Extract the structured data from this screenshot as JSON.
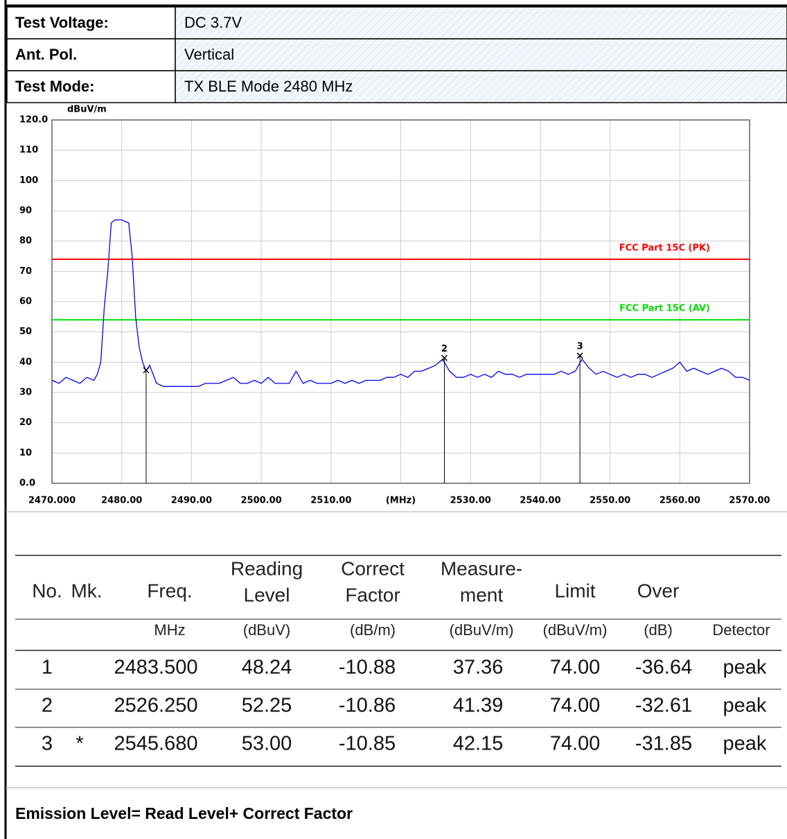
{
  "header": {
    "rows": [
      {
        "label": "Test Voltage:",
        "value": "DC 3.7V"
      },
      {
        "label": "Ant. Pol.",
        "value": "Vertical"
      },
      {
        "label": "Test Mode:",
        "value": "TX BLE Mode 2480 MHz"
      }
    ]
  },
  "chart_data": {
    "type": "line",
    "y_unit": "dBuV/m",
    "xlim": [
      2470,
      2570
    ],
    "ylim": [
      0,
      120
    ],
    "xticks": [
      {
        "value": 2470,
        "label": "2470.000"
      },
      {
        "value": 2480,
        "label": "2480.00"
      },
      {
        "value": 2490,
        "label": "2490.00"
      },
      {
        "value": 2500,
        "label": "2500.00"
      },
      {
        "value": 2510,
        "label": "2510.00"
      },
      {
        "value": 2520,
        "label": "(MHz)"
      },
      {
        "value": 2530,
        "label": "2530.00"
      },
      {
        "value": 2540,
        "label": "2540.00"
      },
      {
        "value": 2550,
        "label": "2550.00"
      },
      {
        "value": 2560,
        "label": "2560.00"
      },
      {
        "value": 2570,
        "label": "2570.00"
      }
    ],
    "yticks": [
      {
        "value": 0,
        "label": "0.0"
      },
      10,
      20,
      30,
      40,
      50,
      60,
      70,
      80,
      90,
      100,
      110,
      {
        "value": 120,
        "label": "120.0"
      }
    ],
    "grid": true,
    "series": [
      {
        "color": "#0000ee",
        "x": [
          2470,
          2471,
          2472,
          2473,
          2474,
          2475,
          2476,
          2476.5,
          2477,
          2477.5,
          2478,
          2478.5,
          2479,
          2480,
          2481,
          2481.5,
          2482,
          2482.5,
          2483,
          2483.5,
          2484,
          2485,
          2486,
          2487,
          2488,
          2489,
          2490,
          2491,
          2492,
          2493,
          2494,
          2495,
          2496,
          2497,
          2498,
          2499,
          2500,
          2501,
          2502,
          2503,
          2504,
          2505,
          2506,
          2507,
          2508,
          2509,
          2510,
          2511,
          2512,
          2513,
          2514,
          2515,
          2516,
          2517,
          2518,
          2519,
          2520,
          2521,
          2522,
          2523,
          2524,
          2525,
          2526,
          2527,
          2528,
          2529,
          2530,
          2531,
          2532,
          2533,
          2534,
          2535,
          2536,
          2537,
          2538,
          2539,
          2540,
          2541,
          2542,
          2543,
          2544,
          2545,
          2546,
          2547,
          2548,
          2549,
          2550,
          2551,
          2552,
          2553,
          2554,
          2555,
          2556,
          2557,
          2558,
          2559,
          2560,
          2561,
          2562,
          2563,
          2564,
          2565,
          2566,
          2567,
          2568,
          2569,
          2570
        ],
        "values": [
          34,
          33,
          35,
          34,
          33,
          35,
          34,
          36,
          40,
          58,
          70,
          86,
          87,
          87,
          86,
          75,
          55,
          45,
          40,
          37,
          39,
          33,
          32,
          32,
          32,
          32,
          32,
          32,
          33,
          33,
          33,
          34,
          35,
          33,
          33,
          34,
          33,
          35,
          33,
          33,
          33,
          37,
          33,
          34,
          33,
          33,
          33,
          34,
          33,
          34,
          33,
          34,
          34,
          34,
          35,
          35,
          36,
          35,
          37,
          37,
          38,
          39,
          41,
          37,
          35,
          35,
          36,
          35,
          36,
          35,
          37,
          36,
          36,
          35,
          36,
          36,
          36,
          36,
          36,
          37,
          36,
          37,
          41,
          38,
          36,
          37,
          36,
          35,
          36,
          35,
          36,
          36,
          35,
          36,
          37,
          38,
          40,
          37,
          38,
          37,
          36,
          37,
          38,
          37,
          35,
          35,
          34
        ]
      }
    ],
    "limit_lines": [
      {
        "name": "FCC Part 15C (PK)",
        "value": 74,
        "color": "#ff0000"
      },
      {
        "name": "FCC Part 15C (AV)",
        "value": 54,
        "color": "#00dd00"
      }
    ],
    "markers": [
      {
        "x": 2483.5,
        "value": 37.36
      },
      {
        "x": 2526.25,
        "value": 41.39,
        "label": "2"
      },
      {
        "x": 2545.68,
        "value": 42.15,
        "label": "3"
      }
    ]
  },
  "table": {
    "columns": [
      {
        "head": [
          "No."
        ]
      },
      {
        "head": [
          "Mk."
        ]
      },
      {
        "head": [
          "Freq."
        ],
        "unit": "MHz"
      },
      {
        "head": [
          "Reading",
          "Level"
        ],
        "unit": "(dBuV)"
      },
      {
        "head": [
          "Correct",
          "Factor"
        ],
        "unit": "(dB/m)"
      },
      {
        "head": [
          "Measure-",
          "ment"
        ],
        "unit": "(dBuV/m)"
      },
      {
        "head": [
          "Limit"
        ],
        "unit": "(dBuV/m)"
      },
      {
        "head": [
          "Over"
        ],
        "unit": "(dB)"
      },
      {
        "unit": "Detector"
      }
    ],
    "rows": [
      {
        "no": "1",
        "freq": "2483.500",
        "reading": "48.24",
        "factor": "-10.88",
        "measurement": "37.36",
        "limit": "74.00",
        "over": "-36.64",
        "detector": "peak"
      },
      {
        "no": "2",
        "freq": "2526.250",
        "reading": "52.25",
        "factor": "-10.86",
        "measurement": "41.39",
        "limit": "74.00",
        "over": "-32.61",
        "detector": "peak"
      },
      {
        "no": "3",
        "mk": "*",
        "freq": "2545.680",
        "reading": "53.00",
        "factor": "-10.85",
        "measurement": "42.15",
        "limit": "74.00",
        "over": "-31.85",
        "detector": "peak"
      }
    ]
  },
  "footer": {
    "note": "Emission Level= Read Level+ Correct Factor"
  }
}
